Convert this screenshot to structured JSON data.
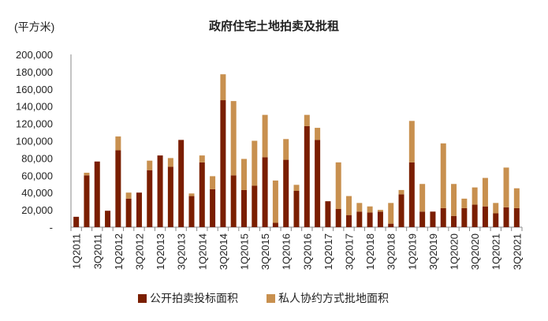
{
  "header": {
    "unit_label": "(平方米)",
    "title": "政府住宅土地拍卖及批租"
  },
  "colors": {
    "auction": "#7a1e00",
    "private": "#c8904f",
    "axis": "#888888"
  },
  "legend": {
    "items": [
      {
        "label": "公开拍卖投标面积",
        "color": "#7a1e00"
      },
      {
        "label": "私人协约方式批地面积",
        "color": "#c8904f"
      }
    ]
  },
  "chart_data": {
    "type": "bar",
    "stacked": true,
    "title": "政府住宅土地拍卖及批租",
    "ylabel": "(平方米)",
    "xlabel": "",
    "ylim": [
      0,
      200000
    ],
    "yticks": [
      0,
      20000,
      40000,
      60000,
      80000,
      100000,
      120000,
      140000,
      160000,
      180000,
      200000
    ],
    "ytick_labels": [
      "-",
      "20,000",
      "40,000",
      "60,000",
      "80,000",
      "100,000",
      "120,000",
      "140,000",
      "160,000",
      "180,000",
      "200,000"
    ],
    "grid": false,
    "legend_position": "bottom",
    "categories": [
      "1Q2011",
      "2Q2011",
      "3Q2011",
      "4Q2011",
      "1Q2012",
      "2Q2012",
      "3Q2012",
      "4Q2012",
      "1Q2013",
      "2Q2013",
      "3Q2013",
      "4Q2013",
      "1Q2014",
      "2Q2014",
      "3Q2014",
      "4Q2014",
      "1Q2015",
      "2Q2015",
      "3Q2015",
      "4Q2015",
      "1Q2016",
      "2Q2016",
      "3Q2016",
      "4Q2016",
      "1Q2017",
      "2Q2017",
      "3Q2017",
      "4Q2017",
      "1Q2018",
      "2Q2018",
      "3Q2018",
      "4Q2018",
      "1Q2019",
      "2Q2019",
      "3Q2019",
      "4Q2019",
      "1Q2020",
      "2Q2020",
      "3Q2020",
      "4Q2020",
      "1Q2021",
      "2Q2021",
      "3Q2021"
    ],
    "xtick_labels_shown": [
      "1Q2011",
      "3Q2011",
      "1Q2012",
      "3Q2012",
      "1Q2013",
      "3Q2013",
      "1Q2014",
      "3Q2014",
      "1Q2015",
      "3Q2015",
      "1Q2016",
      "3Q2016",
      "1Q2017",
      "3Q2017",
      "1Q2018",
      "3Q2018",
      "1Q2019",
      "3Q2019",
      "1Q2020",
      "3Q2020",
      "1Q2021",
      "3Q2021"
    ],
    "series": [
      {
        "name": "公开拍卖投标面积",
        "color": "#7a1e00",
        "values": [
          12000,
          60000,
          76000,
          19000,
          89000,
          33000,
          40000,
          66000,
          83000,
          70000,
          101000,
          36000,
          75000,
          44000,
          147000,
          60000,
          43000,
          48000,
          81000,
          5000,
          78000,
          42000,
          117000,
          101000,
          30000,
          21000,
          14000,
          18000,
          17000,
          18000,
          4000,
          38000,
          75000,
          18000,
          18000,
          22000,
          13000,
          22000,
          26000,
          24000,
          16000,
          23000,
          22000
        ]
      },
      {
        "name": "私人协约方式批地面积",
        "color": "#c8904f",
        "values": [
          0,
          3000,
          0,
          0,
          16000,
          7000,
          0,
          11000,
          0,
          10000,
          0,
          3000,
          8000,
          15000,
          30000,
          86000,
          36000,
          52000,
          49000,
          49000,
          24000,
          7000,
          13000,
          14000,
          0,
          54000,
          22000,
          10000,
          7000,
          2000,
          24000,
          5000,
          48000,
          32000,
          0,
          75000,
          37000,
          11000,
          20000,
          33000,
          12000,
          46000,
          23000
        ]
      }
    ]
  }
}
